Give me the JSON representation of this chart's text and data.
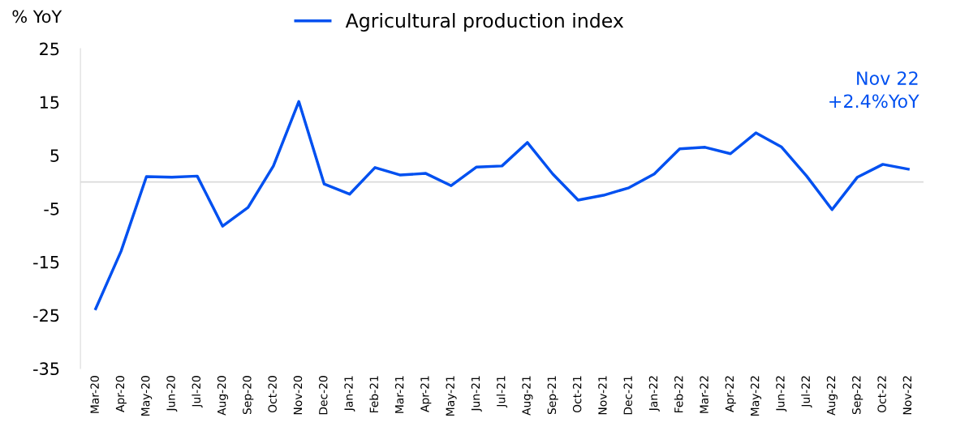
{
  "chart_data": {
    "type": "line",
    "ylabel": "% YoY",
    "categories": [
      "Mar-20",
      "Apr-20",
      "May-20",
      "Jun-20",
      "Jul-20",
      "Aug-20",
      "Sep-20",
      "Oct-20",
      "Nov-20",
      "Dec-20",
      "Jan-21",
      "Feb-21",
      "Mar-21",
      "Apr-21",
      "May-21",
      "Jun-21",
      "Jul-21",
      "Aug-21",
      "Sep-21",
      "Oct-21",
      "Nov-21",
      "Dec-21",
      "Jan-22",
      "Feb-22",
      "Mar-22",
      "Apr-22",
      "May-22",
      "Jun-22",
      "Jul-22",
      "Aug-22",
      "Sep-22",
      "Oct-22",
      "Nov-22"
    ],
    "series": [
      {
        "name": "Agricultural production index",
        "color": "#0050f0",
        "values": [
          -23.8,
          -13,
          1.0,
          0.9,
          1.1,
          -8.3,
          -4.8,
          3.0,
          15.1,
          -0.4,
          -2.3,
          2.7,
          1.3,
          1.6,
          -0.7,
          2.8,
          3.0,
          7.4,
          1.5,
          -3.4,
          -2.5,
          -1.1,
          1.5,
          6.2,
          6.5,
          5.3,
          9.2,
          6.6,
          1.1,
          -5.2,
          0.9,
          3.3,
          2.4
        ]
      }
    ],
    "ylim": [
      -35,
      25
    ],
    "yticks": [
      -35,
      -25,
      -15,
      -5,
      5,
      15,
      25
    ],
    "ref_lines": [
      {
        "axis": "y",
        "value": 0,
        "color": "#d9d9d9"
      }
    ],
    "annotations": [
      "Nov 22\n+2.4%YoY"
    ],
    "grid": false,
    "legend": "top",
    "marker": "none",
    "line_style": "solid"
  }
}
